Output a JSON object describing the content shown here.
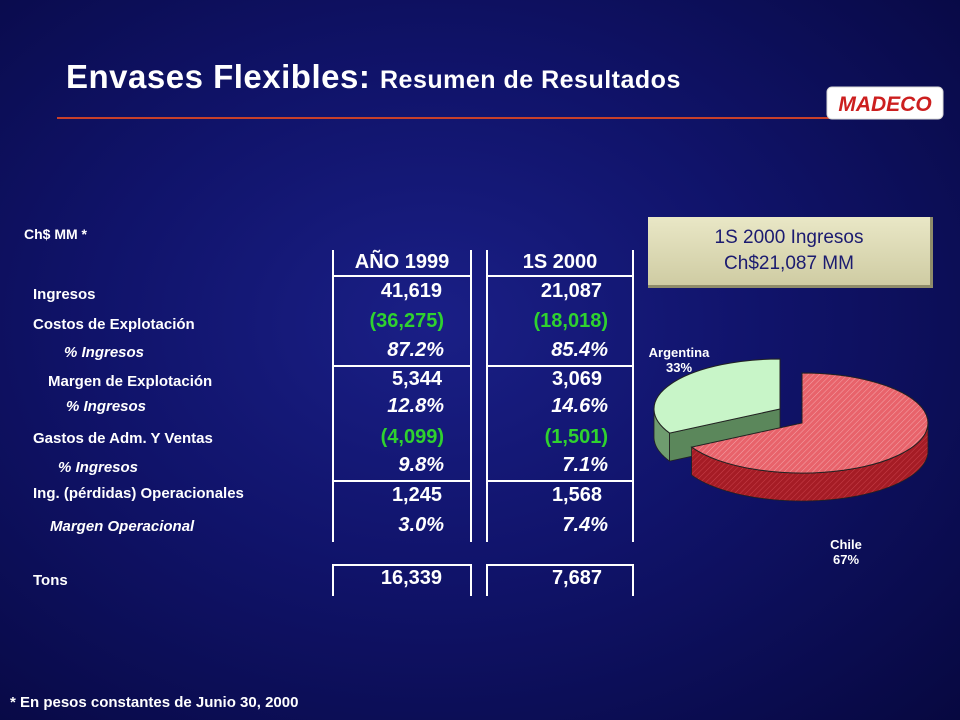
{
  "title": {
    "main": "Envases Flexibles:",
    "sub": "Resumen de Resultados"
  },
  "logo": {
    "text": "MADECO",
    "color": "#cc1f1f"
  },
  "units_label": "Ch$ MM *",
  "columns": [
    "AÑO 1999",
    "1S 2000"
  ],
  "rows": [
    {
      "label": "Ingresos",
      "values": [
        "41,619",
        "21,087"
      ]
    },
    {
      "label": "Costos de Explotación",
      "values": [
        "(36,275)",
        "(18,018)"
      ]
    },
    {
      "label": "% Ingresos",
      "values": [
        "87.2%",
        "85.4%"
      ]
    },
    {
      "label": "Margen de Explotación",
      "values": [
        "5,344",
        "3,069"
      ]
    },
    {
      "label": "% Ingresos",
      "values": [
        "12.8%",
        "14.6%"
      ]
    },
    {
      "label": "Gastos de Adm. Y Ventas",
      "values": [
        "(4,099)",
        "(1,501)"
      ]
    },
    {
      "label": "% Ingresos",
      "values": [
        "9.8%",
        "7.1%"
      ]
    },
    {
      "label": "Ing. (pérdidas) Operacionales",
      "values": [
        "1,245",
        "1,568"
      ]
    },
    {
      "label": "Margen Operacional",
      "values": [
        "3.0%",
        "7.4%"
      ]
    },
    {
      "label": "Tons",
      "values": [
        "16,339",
        "7,687"
      ]
    }
  ],
  "ingresos_box": {
    "line1": "1S 2000 Ingresos",
    "line2": "Ch$21,087 MM"
  },
  "chart_data": {
    "type": "pie",
    "title": "",
    "slices": [
      {
        "label": "Argentina",
        "value": 33,
        "value_label": "33%",
        "color": "#c8f5c8"
      },
      {
        "label": "Chile",
        "value": 67,
        "value_label": "67%",
        "color": "#e8636b"
      }
    ]
  },
  "footnote": "* En pesos constantes de Junio 30, 2000"
}
